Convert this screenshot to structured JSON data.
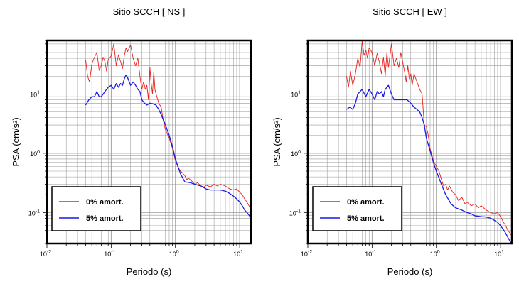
{
  "chart_data": [
    {
      "type": "line",
      "title": "Sitio SCCH [ NS ]",
      "xlabel": "Periodo (s)",
      "ylabel": "PSA (cm/s²)",
      "xscale": "log",
      "yscale": "log",
      "xlim": [
        0.01,
        15
      ],
      "ylim": [
        0.03,
        80
      ],
      "grid": true,
      "legend_placement": "bottom-left",
      "xticks": [
        {
          "base": "10",
          "exp": "-2"
        },
        {
          "base": "10",
          "exp": "-1"
        },
        {
          "base": "10",
          "exp": "0"
        },
        {
          "base": "10",
          "exp": "1"
        }
      ],
      "yticks": [
        {
          "base": "10",
          "exp": "-1"
        },
        {
          "base": "10",
          "exp": "0"
        },
        {
          "base": "10",
          "exp": "1"
        }
      ],
      "series": [
        {
          "name": "0% amort.",
          "color": "#e8211c",
          "points": [
            [
              0.04,
              38
            ],
            [
              0.043,
              20
            ],
            [
              0.046,
              16
            ],
            [
              0.05,
              32
            ],
            [
              0.055,
              42
            ],
            [
              0.06,
              50
            ],
            [
              0.065,
              25
            ],
            [
              0.07,
              30
            ],
            [
              0.075,
              42
            ],
            [
              0.08,
              35
            ],
            [
              0.085,
              24
            ],
            [
              0.09,
              38
            ],
            [
              0.1,
              44
            ],
            [
              0.11,
              70
            ],
            [
              0.12,
              30
            ],
            [
              0.13,
              46
            ],
            [
              0.14,
              35
            ],
            [
              0.15,
              27
            ],
            [
              0.16,
              44
            ],
            [
              0.17,
              60
            ],
            [
              0.18,
              52
            ],
            [
              0.2,
              67
            ],
            [
              0.22,
              40
            ],
            [
              0.24,
              30
            ],
            [
              0.26,
              40
            ],
            [
              0.28,
              20
            ],
            [
              0.3,
              12
            ],
            [
              0.32,
              16
            ],
            [
              0.34,
              12
            ],
            [
              0.36,
              14
            ],
            [
              0.38,
              8
            ],
            [
              0.4,
              28
            ],
            [
              0.42,
              15
            ],
            [
              0.44,
              10
            ],
            [
              0.46,
              24
            ],
            [
              0.48,
              12
            ],
            [
              0.5,
              10
            ],
            [
              0.55,
              7
            ],
            [
              0.6,
              6
            ],
            [
              0.65,
              3.5
            ],
            [
              0.7,
              2.5
            ],
            [
              0.8,
              1.8
            ],
            [
              0.9,
              1.2
            ],
            [
              1.0,
              0.75
            ],
            [
              1.1,
              0.58
            ],
            [
              1.2,
              0.5
            ],
            [
              1.3,
              0.46
            ],
            [
              1.4,
              0.42
            ],
            [
              1.5,
              0.36
            ],
            [
              1.6,
              0.38
            ],
            [
              1.8,
              0.34
            ],
            [
              2.0,
              0.3
            ],
            [
              2.2,
              0.32
            ],
            [
              2.5,
              0.28
            ],
            [
              2.8,
              0.27
            ],
            [
              3.0,
              0.29
            ],
            [
              3.5,
              0.27
            ],
            [
              4.0,
              0.3
            ],
            [
              4.5,
              0.28
            ],
            [
              5.0,
              0.3
            ],
            [
              6.0,
              0.28
            ],
            [
              7.0,
              0.25
            ],
            [
              8.0,
              0.24
            ],
            [
              9.0,
              0.25
            ],
            [
              10.0,
              0.22
            ],
            [
              11.0,
              0.2
            ],
            [
              12.0,
              0.17
            ],
            [
              13.0,
              0.15
            ],
            [
              14.0,
              0.13
            ],
            [
              15.0,
              0.11
            ]
          ]
        },
        {
          "name": "5% amort.",
          "color": "#1a1ae6",
          "points": [
            [
              0.04,
              6.5
            ],
            [
              0.045,
              8
            ],
            [
              0.05,
              9
            ],
            [
              0.055,
              9
            ],
            [
              0.06,
              11
            ],
            [
              0.065,
              9
            ],
            [
              0.07,
              9
            ],
            [
              0.08,
              11
            ],
            [
              0.09,
              13
            ],
            [
              0.1,
              14
            ],
            [
              0.11,
              12
            ],
            [
              0.12,
              15
            ],
            [
              0.13,
              13
            ],
            [
              0.14,
              15
            ],
            [
              0.15,
              14
            ],
            [
              0.16,
              18
            ],
            [
              0.17,
              21
            ],
            [
              0.18,
              19
            ],
            [
              0.2,
              14
            ],
            [
              0.22,
              16
            ],
            [
              0.24,
              14
            ],
            [
              0.26,
              12
            ],
            [
              0.28,
              11
            ],
            [
              0.3,
              8
            ],
            [
              0.33,
              7
            ],
            [
              0.36,
              6.5
            ],
            [
              0.4,
              7
            ],
            [
              0.45,
              6.8
            ],
            [
              0.5,
              6.5
            ],
            [
              0.55,
              5.5
            ],
            [
              0.6,
              4.5
            ],
            [
              0.7,
              3
            ],
            [
              0.8,
              2
            ],
            [
              0.9,
              1.3
            ],
            [
              1.0,
              0.8
            ],
            [
              1.2,
              0.45
            ],
            [
              1.4,
              0.33
            ],
            [
              1.7,
              0.32
            ],
            [
              2.0,
              0.3
            ],
            [
              2.5,
              0.28
            ],
            [
              3.0,
              0.25
            ],
            [
              3.5,
              0.24
            ],
            [
              4.0,
              0.24
            ],
            [
              5.0,
              0.24
            ],
            [
              6.0,
              0.23
            ],
            [
              7.0,
              0.21
            ],
            [
              8.0,
              0.19
            ],
            [
              9.0,
              0.17
            ],
            [
              10.0,
              0.15
            ],
            [
              11.0,
              0.13
            ],
            [
              12.0,
              0.11
            ],
            [
              13.0,
              0.1
            ],
            [
              14.0,
              0.09
            ],
            [
              15.0,
              0.08
            ]
          ]
        }
      ]
    },
    {
      "type": "line",
      "title": "Sitio SCCH [ EW ]",
      "xlabel": "Periodo (s)",
      "ylabel": "PSA (cm/s²)",
      "xscale": "log",
      "yscale": "log",
      "xlim": [
        0.01,
        15
      ],
      "ylim": [
        0.03,
        80
      ],
      "grid": true,
      "legend_placement": "bottom-left",
      "xticks": [
        {
          "base": "10",
          "exp": "-2"
        },
        {
          "base": "10",
          "exp": "-1"
        },
        {
          "base": "10",
          "exp": "0"
        },
        {
          "base": "10",
          "exp": "1"
        }
      ],
      "yticks": [
        {
          "base": "10",
          "exp": "-1"
        },
        {
          "base": "10",
          "exp": "0"
        },
        {
          "base": "10",
          "exp": "1"
        }
      ],
      "series": [
        {
          "name": "0% amort.",
          "color": "#e8211c",
          "points": [
            [
              0.04,
              20
            ],
            [
              0.043,
              13
            ],
            [
              0.046,
              24
            ],
            [
              0.05,
              14
            ],
            [
              0.055,
              22
            ],
            [
              0.06,
              40
            ],
            [
              0.065,
              28
            ],
            [
              0.07,
              78
            ],
            [
              0.075,
              45
            ],
            [
              0.08,
              55
            ],
            [
              0.085,
              40
            ],
            [
              0.09,
              60
            ],
            [
              0.1,
              50
            ],
            [
              0.11,
              30
            ],
            [
              0.12,
              48
            ],
            [
              0.13,
              34
            ],
            [
              0.14,
              22
            ],
            [
              0.15,
              42
            ],
            [
              0.16,
              20
            ],
            [
              0.17,
              50
            ],
            [
              0.18,
              28
            ],
            [
              0.2,
              70
            ],
            [
              0.22,
              30
            ],
            [
              0.24,
              40
            ],
            [
              0.26,
              28
            ],
            [
              0.28,
              50
            ],
            [
              0.3,
              34
            ],
            [
              0.32,
              24
            ],
            [
              0.34,
              16
            ],
            [
              0.36,
              30
            ],
            [
              0.38,
              18
            ],
            [
              0.4,
              22
            ],
            [
              0.42,
              14
            ],
            [
              0.45,
              22
            ],
            [
              0.5,
              16
            ],
            [
              0.55,
              12
            ],
            [
              0.6,
              10
            ],
            [
              0.65,
              3
            ],
            [
              0.7,
              2.8
            ],
            [
              0.75,
              2
            ],
            [
              0.8,
              1.2
            ],
            [
              0.9,
              0.75
            ],
            [
              1.0,
              0.6
            ],
            [
              1.1,
              0.5
            ],
            [
              1.2,
              0.36
            ],
            [
              1.3,
              0.28
            ],
            [
              1.4,
              0.3
            ],
            [
              1.5,
              0.24
            ],
            [
              1.6,
              0.28
            ],
            [
              1.8,
              0.22
            ],
            [
              2.0,
              0.2
            ],
            [
              2.2,
              0.16
            ],
            [
              2.5,
              0.18
            ],
            [
              2.8,
              0.14
            ],
            [
              3.0,
              0.15
            ],
            [
              3.5,
              0.13
            ],
            [
              4.0,
              0.14
            ],
            [
              4.5,
              0.12
            ],
            [
              5.0,
              0.13
            ],
            [
              6.0,
              0.11
            ],
            [
              7.0,
              0.1
            ],
            [
              8.0,
              0.095
            ],
            [
              9.0,
              0.1
            ],
            [
              10.0,
              0.085
            ],
            [
              11.0,
              0.07
            ],
            [
              12.0,
              0.06
            ],
            [
              13.0,
              0.05
            ],
            [
              14.0,
              0.045
            ],
            [
              15.0,
              0.04
            ]
          ]
        },
        {
          "name": "5% amort.",
          "color": "#1a1ae6",
          "points": [
            [
              0.04,
              5.5
            ],
            [
              0.045,
              6
            ],
            [
              0.05,
              5.5
            ],
            [
              0.055,
              7
            ],
            [
              0.06,
              10
            ],
            [
              0.07,
              12
            ],
            [
              0.08,
              9
            ],
            [
              0.09,
              12
            ],
            [
              0.1,
              10
            ],
            [
              0.11,
              8
            ],
            [
              0.12,
              11
            ],
            [
              0.13,
              10
            ],
            [
              0.14,
              11
            ],
            [
              0.15,
              9
            ],
            [
              0.16,
              12
            ],
            [
              0.17,
              13
            ],
            [
              0.18,
              14
            ],
            [
              0.2,
              10
            ],
            [
              0.22,
              8
            ],
            [
              0.25,
              8
            ],
            [
              0.3,
              8
            ],
            [
              0.35,
              8
            ],
            [
              0.4,
              7
            ],
            [
              0.45,
              6
            ],
            [
              0.5,
              5.5
            ],
            [
              0.55,
              5
            ],
            [
              0.6,
              4
            ],
            [
              0.65,
              3
            ],
            [
              0.7,
              1.8
            ],
            [
              0.8,
              1.1
            ],
            [
              0.9,
              0.7
            ],
            [
              1.0,
              0.5
            ],
            [
              1.2,
              0.3
            ],
            [
              1.4,
              0.2
            ],
            [
              1.7,
              0.14
            ],
            [
              2.0,
              0.12
            ],
            [
              2.5,
              0.11
            ],
            [
              3.0,
              0.1
            ],
            [
              3.5,
              0.095
            ],
            [
              4.0,
              0.088
            ],
            [
              5.0,
              0.085
            ],
            [
              6.0,
              0.084
            ],
            [
              7.0,
              0.08
            ],
            [
              8.0,
              0.074
            ],
            [
              9.0,
              0.068
            ],
            [
              10.0,
              0.06
            ],
            [
              11.0,
              0.052
            ],
            [
              12.0,
              0.045
            ],
            [
              13.0,
              0.038
            ],
            [
              14.0,
              0.033
            ],
            [
              15.0,
              0.029
            ]
          ]
        }
      ]
    }
  ]
}
